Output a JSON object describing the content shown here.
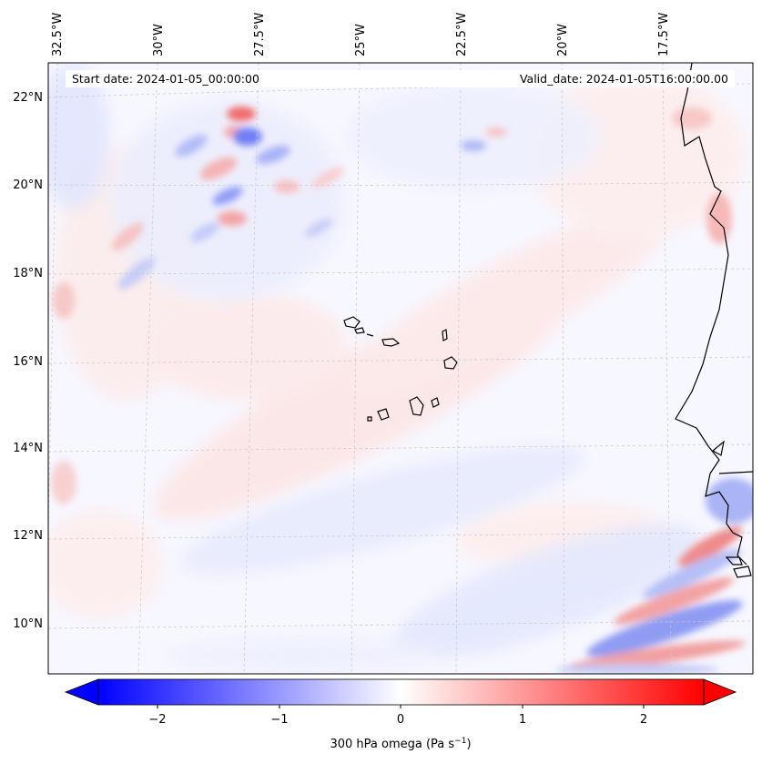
{
  "header": {
    "start_date": "Start date: 2024-01-05_00:00:00",
    "valid_date": "Valid_date: 2024-01-05T16:00:00.00"
  },
  "lon_labels": [
    "32.5°W",
    "30°W",
    "27.5°W",
    "25°W",
    "22.5°W",
    "20°W",
    "17.5°W"
  ],
  "lat_labels": [
    "22°N",
    "20°N",
    "18°N",
    "16°N",
    "14°N",
    "12°N",
    "10°N"
  ],
  "colorbar": {
    "ticks": [
      "−2",
      "−1",
      "0",
      "1",
      "2"
    ],
    "label_prefix": "300 hPa omega (Pa s",
    "label_exp": "−1",
    "label_suffix": ")",
    "vmin": -2.6,
    "vmax": 2.6
  },
  "colors": {
    "negative": "#0000ff",
    "positive": "#ff0000",
    "coastline": "#000000",
    "gridline": "#c8c8c8"
  }
}
